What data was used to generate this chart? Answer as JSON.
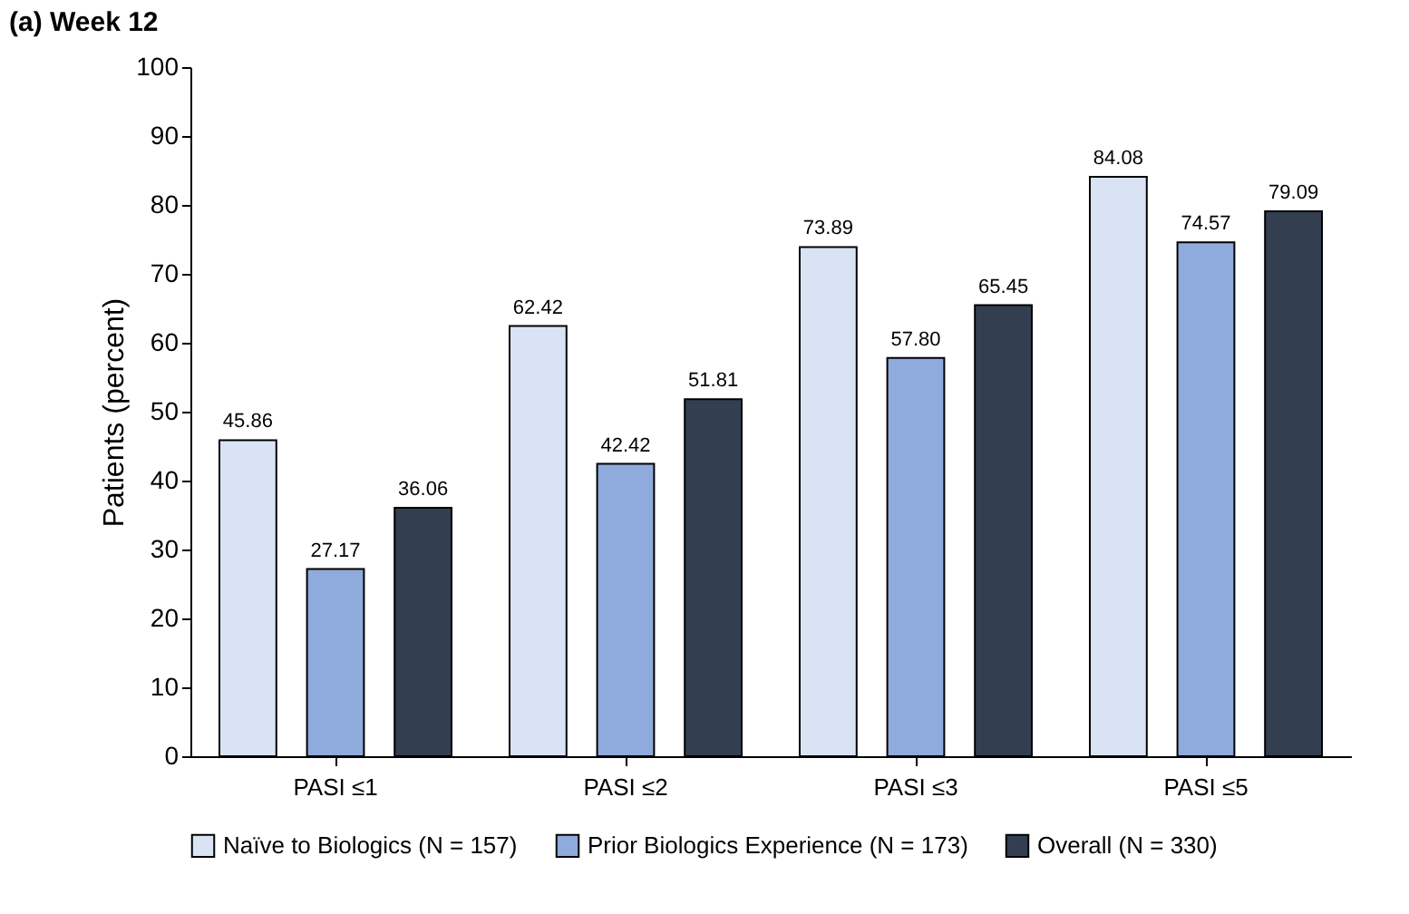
{
  "chart_data": {
    "type": "bar",
    "title": "(a) Week 12",
    "ylabel": "Patients (percent)",
    "categories": [
      "PASI ≤1",
      "PASI ≤2",
      "PASI ≤3",
      "PASI ≤5"
    ],
    "series": [
      {
        "name": "Naïve to Biologics (N = 157)",
        "color": "#dae3f3",
        "values": [
          45.86,
          62.42,
          73.89,
          84.08
        ]
      },
      {
        "name": "Prior Biologics Experience (N = 173)",
        "color": "#8faadc",
        "values": [
          27.17,
          42.42,
          57.8,
          74.57
        ],
        "value_labels": [
          "27.17",
          "42.42",
          "57.80",
          "74.57"
        ]
      },
      {
        "name": "Overall (N = 330)",
        "color": "#333f50",
        "values": [
          36.06,
          51.81,
          65.45,
          79.09
        ]
      }
    ],
    "ylim": [
      0,
      100
    ],
    "yticks": [
      0,
      10,
      20,
      30,
      40,
      50,
      60,
      70,
      80,
      90,
      100
    ],
    "grid": false,
    "legend": "bottom",
    "data_labels": true
  }
}
